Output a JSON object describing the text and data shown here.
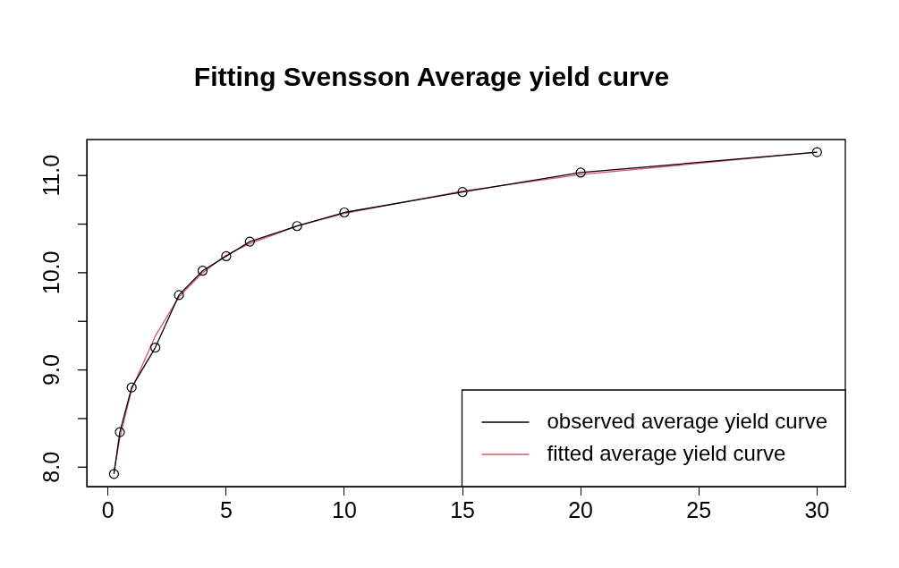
{
  "chart_data": {
    "type": "line",
    "title": "Fitting Svensson Average yield curve",
    "x": [
      0.25,
      0.5,
      1,
      2,
      3,
      4,
      5,
      6,
      8,
      10,
      15,
      20,
      30
    ],
    "series": [
      {
        "name": "observed average yield curve",
        "color": "#000000",
        "marker": "circle",
        "values": [
          7.93,
          8.36,
          8.82,
          9.23,
          9.77,
          10.02,
          10.17,
          10.32,
          10.48,
          10.62,
          10.83,
          11.03,
          11.24
        ]
      },
      {
        "name": "fitted average yield curve",
        "color": "#df536b",
        "marker": "none",
        "values": [
          7.95,
          8.3,
          8.8,
          9.35,
          9.75,
          10.0,
          10.18,
          10.3,
          10.48,
          10.61,
          10.84,
          11.01,
          11.24
        ]
      }
    ],
    "xlim": [
      -0.9,
      31.2
    ],
    "xticks": [
      0,
      5,
      10,
      15,
      20,
      25,
      30
    ],
    "ylim": [
      7.8,
      11.37
    ],
    "yticks": [
      {
        "value": 8,
        "label": "8.0"
      },
      {
        "value": 8.5,
        "label": null
      },
      {
        "value": 9,
        "label": "9.0"
      },
      {
        "value": 9.5,
        "label": null
      },
      {
        "value": 10,
        "label": "10.0"
      },
      {
        "value": 10.5,
        "label": null
      },
      {
        "value": 11,
        "label": "11.0"
      }
    ],
    "grid": false,
    "legend": "bottom right",
    "line_style": "solid"
  }
}
